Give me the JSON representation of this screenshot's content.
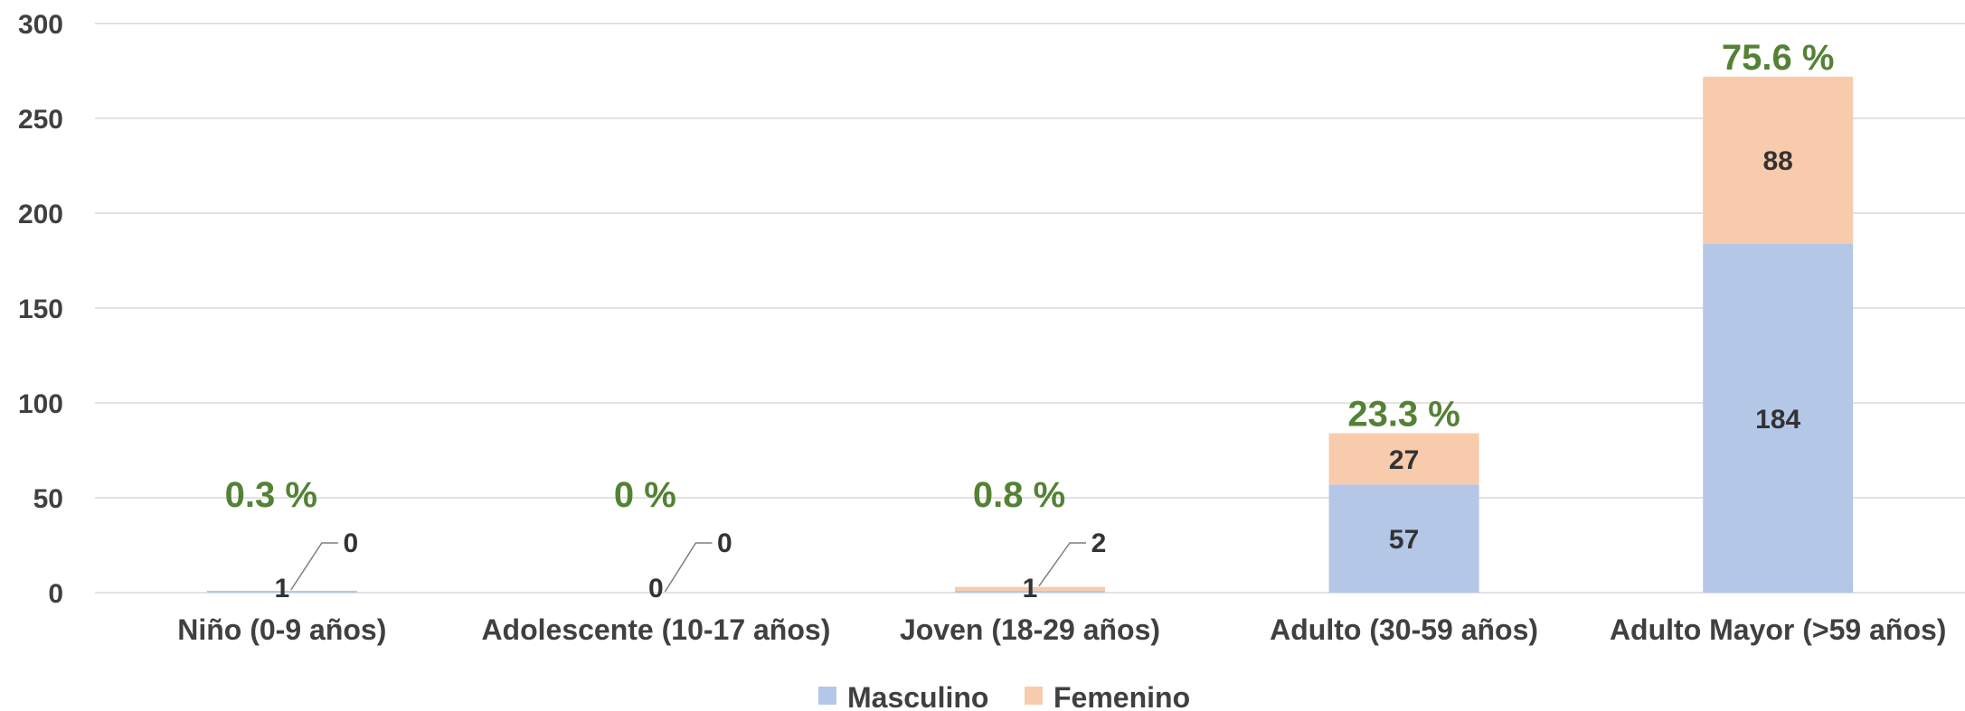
{
  "chart_data": {
    "type": "bar",
    "stacked": true,
    "categories": [
      "Niño (0-9 años)",
      "Adolescente (10-17 años)",
      "Joven (18-29 años)",
      "Adulto (30-59 años)",
      "Adulto Mayor (>59 años)"
    ],
    "series": [
      {
        "name": "Masculino",
        "color": "#b4c7e7",
        "values": [
          1,
          0,
          1,
          57,
          184
        ]
      },
      {
        "name": "Femenino",
        "color": "#f8cbad",
        "values": [
          0,
          0,
          2,
          27,
          88
        ]
      }
    ],
    "totals_pct_labels": [
      "0.3 %",
      "0 %",
      "0.8 %",
      "23.3 %",
      "75.6 %"
    ],
    "ylim": [
      0,
      300
    ],
    "yticks": [
      0,
      50,
      100,
      150,
      200,
      250,
      300
    ],
    "grid": true,
    "legend": "bottom",
    "pct_color": "#548235"
  }
}
